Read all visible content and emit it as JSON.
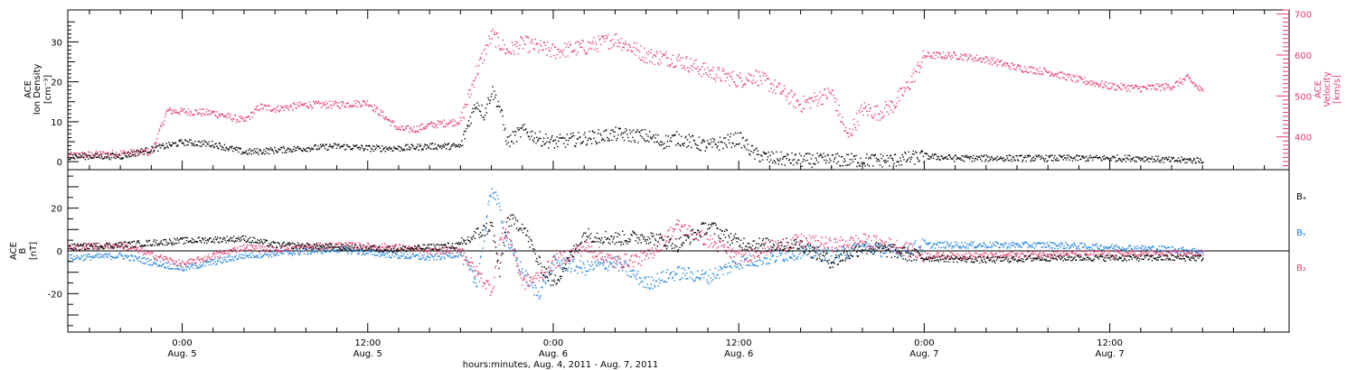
{
  "colors": {
    "black": "#000000",
    "red": "#e63a6a",
    "blue": "#1a7fd9"
  },
  "xaxis": {
    "tick_values_hr": [
      24,
      36,
      48,
      60,
      72,
      84
    ],
    "tick_labels": [
      [
        "0:00",
        "Aug. 5"
      ],
      [
        "12:00",
        "Aug. 5"
      ],
      [
        "0:00",
        "Aug. 6"
      ],
      [
        "12:00",
        "Aug. 6"
      ],
      [
        "0:00",
        "Aug. 7"
      ],
      [
        "12:00",
        "Aug. 7"
      ]
    ],
    "title": "hours:minutes, Aug.  4, 2011 - Aug. 7, 2011"
  },
  "chart_data": [
    {
      "type": "scatter",
      "title": "",
      "x_unit_note": "hours since Aug. 4 00:00",
      "xlim": [
        16.6,
        95.6
      ],
      "ylabel_left": [
        "ACE",
        "Ion Density",
        "[cm⁻³]"
      ],
      "ylabel_right": [
        "ACE",
        "Velocity",
        "[km/s]"
      ],
      "ylim_left": [
        -2,
        38
      ],
      "yticks_left": [
        0,
        10,
        20,
        30
      ],
      "ylim_right": [
        320,
        710
      ],
      "yticks_right": [
        400,
        500,
        600,
        700
      ],
      "series": [
        {
          "axis": "left",
          "color": "#000000",
          "x": [
            16.6,
            20,
            24,
            26,
            28,
            30,
            32,
            34,
            36,
            38,
            40,
            42,
            42.5,
            43,
            43.5,
            44,
            44.5,
            45,
            46,
            47,
            48,
            50,
            52,
            54,
            55,
            56,
            58,
            60,
            61,
            62,
            64,
            66,
            68,
            70,
            72,
            74,
            76,
            78,
            80,
            82,
            84,
            86,
            88,
            90
          ],
          "y": [
            1.5,
            1.5,
            5,
            4.5,
            2.5,
            3,
            3.5,
            4,
            3.5,
            3.5,
            4,
            4,
            10,
            15,
            12,
            18,
            14,
            5,
            8,
            6,
            5,
            6,
            7,
            6.5,
            5,
            6,
            4,
            6,
            2,
            1,
            0.5,
            0.5,
            0.5,
            0.5,
            1.5,
            1,
            1,
            1,
            1,
            1,
            1,
            1,
            0.5,
            0.5
          ]
        },
        {
          "axis": "right",
          "color": "#e63a6a",
          "x": [
            16.6,
            22,
            23,
            26,
            27,
            28,
            29,
            30,
            32,
            34,
            36,
            38,
            39,
            40,
            42,
            43,
            44,
            45,
            46,
            48,
            50,
            52,
            54,
            56,
            58,
            60,
            61,
            62,
            64,
            66,
            67,
            68,
            69,
            70,
            71,
            72,
            74,
            76,
            78,
            80,
            82,
            84,
            86,
            88,
            89,
            90
          ],
          "y": [
            355,
            365,
            465,
            460,
            450,
            440,
            475,
            470,
            480,
            480,
            485,
            420,
            420,
            430,
            440,
            560,
            650,
            610,
            630,
            610,
            620,
            640,
            600,
            590,
            560,
            540,
            550,
            530,
            480,
            510,
            400,
            470,
            460,
            480,
            530,
            600,
            600,
            590,
            570,
            560,
            540,
            525,
            520,
            525,
            545,
            510
          ]
        }
      ]
    },
    {
      "type": "scatter",
      "title": "",
      "x_unit_note": "hours since Aug. 4 00:00",
      "xlim": [
        16.6,
        95.6
      ],
      "ylabel": [
        "ACE",
        "B",
        "[nT]"
      ],
      "ylim": [
        -38,
        38
      ],
      "yticks": [
        -20,
        0,
        20
      ],
      "legend": [
        "Bₓ",
        "Bᵧ",
        "B₂"
      ],
      "series": [
        {
          "name": "Bx",
          "color": "#000000",
          "x": [
            16.6,
            20,
            24,
            28,
            30,
            34,
            38,
            40,
            42,
            43,
            44,
            44.5,
            45,
            46,
            47,
            48,
            50,
            52,
            54,
            56,
            58,
            60,
            62,
            64,
            66,
            68,
            70,
            72,
            76,
            80,
            84,
            88,
            90
          ],
          "y": [
            2,
            3,
            5,
            6,
            3,
            2,
            1,
            2,
            3,
            8,
            12,
            -10,
            15,
            12,
            -5,
            -15,
            8,
            6,
            7,
            3,
            12,
            4,
            3,
            3,
            -5,
            2,
            0,
            -3,
            -4,
            -3,
            -3,
            -3,
            -3
          ]
        },
        {
          "name": "By",
          "color": "#1a7fd9",
          "x": [
            16.6,
            20,
            24,
            28,
            30,
            34,
            38,
            40,
            42,
            43,
            44,
            44.5,
            45,
            46,
            47,
            48,
            50,
            52,
            54,
            56,
            58,
            60,
            62,
            64,
            66,
            68,
            70,
            72,
            76,
            80,
            84,
            88,
            90
          ],
          "y": [
            -3,
            -2,
            -8,
            -2,
            -1,
            1,
            -2,
            -3,
            -1,
            -15,
            30,
            20,
            5,
            -10,
            -20,
            -5,
            -8,
            -5,
            -15,
            -10,
            -12,
            -5,
            -3,
            0,
            -2,
            2,
            0,
            3,
            3,
            3,
            2,
            1,
            0
          ]
        },
        {
          "name": "Bz",
          "color": "#e63a6a",
          "x": [
            16.6,
            20,
            24,
            28,
            30,
            34,
            38,
            40,
            42,
            43,
            44,
            44.5,
            45,
            46,
            47,
            48,
            50,
            52,
            54,
            56,
            58,
            60,
            62,
            64,
            66,
            68,
            70,
            72,
            76,
            80,
            84,
            88,
            90
          ],
          "y": [
            2,
            3,
            -6,
            2,
            1,
            3,
            2,
            0,
            1,
            -10,
            -18,
            5,
            10,
            -15,
            -12,
            -5,
            2,
            -5,
            -3,
            12,
            5,
            -3,
            2,
            5,
            3,
            5,
            3,
            -2,
            -2,
            -1,
            -1,
            -1,
            -1
          ]
        }
      ]
    }
  ]
}
